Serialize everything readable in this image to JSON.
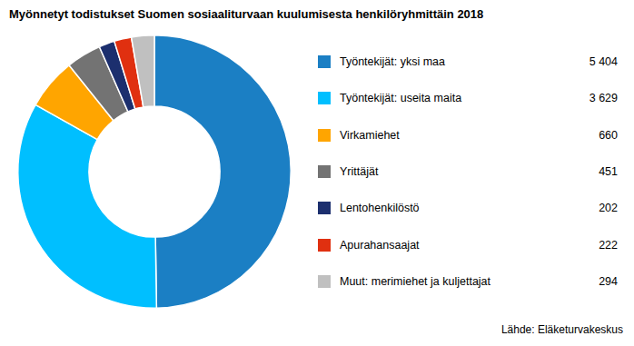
{
  "chart_data": {
    "type": "doughnut",
    "title": "Myönnetyt todistukset Suomen sosiaaliturvaan kuulumisesta henkilöryhmittäin 2018",
    "categories": [
      "Työntekijät: yksi maa",
      "Työntekijät: useita maita",
      "Virkamiehet",
      "Yrittäjät",
      "Lentohenkilöstö",
      "Apurahansaajat",
      "Muut: merimiehet ja kuljettajat"
    ],
    "values": [
      5404,
      3629,
      660,
      451,
      202,
      222,
      294
    ],
    "value_labels": [
      "5 404",
      "3 629",
      "660",
      "451",
      "202",
      "222",
      "294"
    ],
    "colors": [
      "#1B7FC4",
      "#00BFFF",
      "#FFA500",
      "#737373",
      "#1C2F6E",
      "#E03010",
      "#C0C0C0"
    ],
    "legend": "right",
    "annotations": [
      "Lähde: Eläketurvakeskus"
    ]
  }
}
